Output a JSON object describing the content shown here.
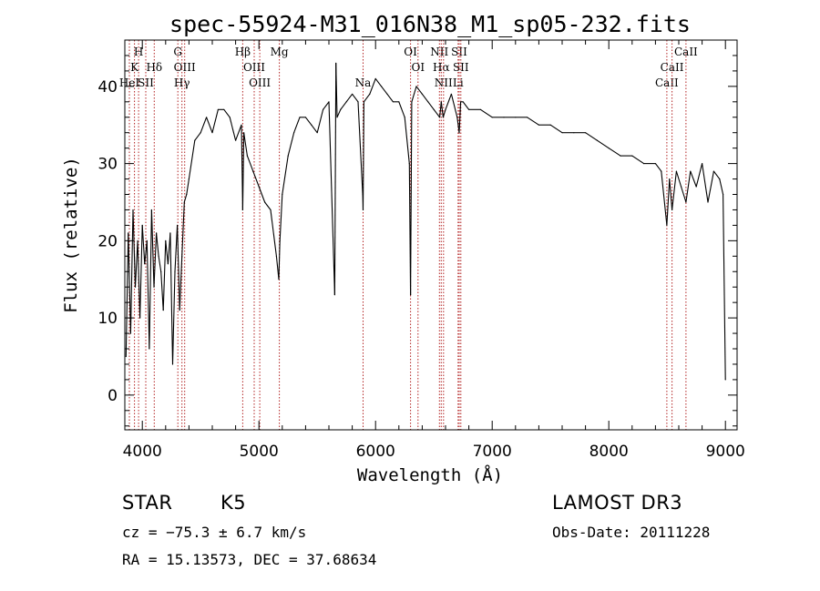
{
  "chart_data": {
    "type": "line",
    "title": "spec-55924-M31_016N38_M1_sp05-232.fits",
    "xlabel": "Wavelength (Å)",
    "ylabel": "Flux (relative)",
    "xlim": [
      3850,
      9100
    ],
    "ylim": [
      -4.5,
      46
    ],
    "xticks": [
      4000,
      5000,
      6000,
      7000,
      8000,
      9000
    ],
    "yticks": [
      0,
      10,
      20,
      30,
      40
    ],
    "series": [
      {
        "name": "flux",
        "x": [
          3860,
          3880,
          3900,
          3920,
          3940,
          3960,
          3980,
          4000,
          4020,
          4040,
          4060,
          4080,
          4100,
          4120,
          4140,
          4160,
          4180,
          4200,
          4220,
          4240,
          4260,
          4280,
          4300,
          4320,
          4340,
          4360,
          4380,
          4400,
          4450,
          4500,
          4550,
          4600,
          4650,
          4700,
          4750,
          4800,
          4850,
          4861,
          4870,
          4900,
          4950,
          5000,
          5050,
          5100,
          5150,
          5170,
          5180,
          5200,
          5250,
          5300,
          5350,
          5400,
          5450,
          5500,
          5550,
          5600,
          5650,
          5660,
          5670,
          5700,
          5750,
          5800,
          5850,
          5890,
          5893,
          5896,
          5900,
          5950,
          6000,
          6050,
          6100,
          6150,
          6200,
          6250,
          6290,
          6300,
          6310,
          6350,
          6400,
          6450,
          6500,
          6550,
          6563,
          6580,
          6600,
          6650,
          6700,
          6717,
          6730,
          6750,
          6800,
          6900,
          7000,
          7100,
          7200,
          7300,
          7400,
          7500,
          7600,
          7700,
          7800,
          7900,
          8000,
          8100,
          8200,
          8300,
          8400,
          8450,
          8498,
          8520,
          8542,
          8580,
          8620,
          8662,
          8700,
          8750,
          8800,
          8850,
          8900,
          8950,
          8980,
          9000
        ],
        "y": [
          5,
          21,
          8,
          24,
          14,
          20,
          10,
          22,
          17,
          20,
          6,
          24,
          14,
          21,
          18,
          16,
          11,
          20,
          17,
          21,
          4,
          16,
          22,
          11,
          18,
          25,
          26,
          28,
          33,
          34,
          36,
          34,
          37,
          37,
          36,
          33,
          35,
          24,
          34,
          31,
          29,
          27,
          25,
          24,
          18,
          15,
          20,
          26,
          31,
          34,
          36,
          36,
          35,
          34,
          37,
          38,
          13,
          43,
          36,
          37,
          38,
          39,
          38,
          26,
          24,
          30,
          38,
          39,
          41,
          40,
          39,
          38,
          38,
          36,
          30,
          13,
          38,
          40,
          39,
          38,
          37,
          36,
          38,
          36,
          37,
          39,
          36,
          34,
          38,
          38,
          37,
          37,
          36,
          36,
          36,
          36,
          35,
          35,
          34,
          34,
          34,
          33,
          32,
          31,
          31,
          30,
          30,
          29,
          22,
          28,
          24,
          29,
          27,
          25,
          29,
          27,
          30,
          25,
          29,
          28,
          26,
          2
        ]
      }
    ],
    "lines": [
      {
        "label": "K",
        "x": 3933,
        "row": 1
      },
      {
        "label": "H",
        "x": 3968,
        "row": 0
      },
      {
        "label": "HeI",
        "x": 3889,
        "row": 2
      },
      {
        "label": "SII",
        "x": 4030,
        "row": 2
      },
      {
        "label": "Hδ",
        "x": 4102,
        "row": 1
      },
      {
        "label": "G",
        "x": 4305,
        "row": 0
      },
      {
        "label": "OIII",
        "x": 4363,
        "row": 1
      },
      {
        "label": "Hγ",
        "x": 4340,
        "row": 2
      },
      {
        "label": "Hβ",
        "x": 4861,
        "row": 0
      },
      {
        "label": "OIII",
        "x": 4959,
        "row": 1
      },
      {
        "label": "OIII",
        "x": 5007,
        "row": 2
      },
      {
        "label": "Mg",
        "x": 5175,
        "row": 0
      },
      {
        "label": "Na",
        "x": 5893,
        "row": 2
      },
      {
        "label": "OI",
        "x": 6300,
        "row": 0
      },
      {
        "label": "OI",
        "x": 6364,
        "row": 1
      },
      {
        "label": "NII",
        "x": 6548,
        "row": 0
      },
      {
        "label": "Hα",
        "x": 6563,
        "row": 1
      },
      {
        "label": "NII",
        "x": 6583,
        "row": 2
      },
      {
        "label": "SII",
        "x": 6717,
        "row": 0
      },
      {
        "label": "SII",
        "x": 6731,
        "row": 1
      },
      {
        "label": "Li",
        "x": 6708,
        "row": 2
      },
      {
        "label": "CaII",
        "x": 8498,
        "row": 2
      },
      {
        "label": "CaII",
        "x": 8542,
        "row": 1
      },
      {
        "label": "CaII",
        "x": 8662,
        "row": 0
      }
    ],
    "line_color": "#b22222"
  },
  "info": {
    "class": "STAR",
    "subclass": "K5",
    "survey": "LAMOST DR3",
    "cz": "cz = −75.3 ± 6.7 km/s",
    "obs_date": "Obs-Date: 20111228",
    "radec": "RA =  15.13573, DEC =  37.68634"
  }
}
